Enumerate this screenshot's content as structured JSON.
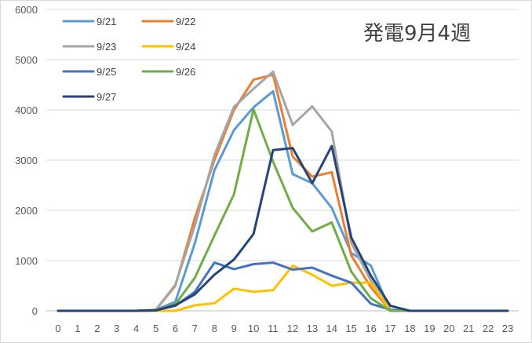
{
  "chart_data": {
    "type": "line",
    "title": "発電9月4週",
    "xlabel": "",
    "ylabel": "",
    "ylim": [
      0,
      6000
    ],
    "yticks": [
      0,
      1000,
      2000,
      3000,
      4000,
      5000,
      6000
    ],
    "x": [
      0,
      1,
      2,
      3,
      4,
      5,
      6,
      7,
      8,
      9,
      10,
      11,
      12,
      13,
      14,
      15,
      16,
      17,
      18,
      19,
      20,
      21,
      22,
      23
    ],
    "grid": "horizontal",
    "legend_position": "top-left",
    "series": [
      {
        "name": "9/21",
        "color": "#5b9bd5",
        "values": [
          0,
          0,
          0,
          0,
          0,
          20,
          180,
          1350,
          2800,
          3600,
          4050,
          4370,
          2720,
          2540,
          2050,
          1150,
          900,
          0,
          0,
          0,
          0,
          0,
          0,
          0
        ]
      },
      {
        "name": "9/22",
        "color": "#ed7d31",
        "values": [
          0,
          0,
          0,
          0,
          0,
          20,
          500,
          1850,
          3000,
          4000,
          4600,
          4700,
          3070,
          2670,
          2760,
          1100,
          470,
          0,
          0,
          0,
          0,
          0,
          0,
          0
        ]
      },
      {
        "name": "9/23",
        "color": "#a5a5a5",
        "values": [
          0,
          0,
          0,
          0,
          0,
          20,
          520,
          1700,
          3100,
          4060,
          4420,
          4760,
          3700,
          4070,
          3570,
          1350,
          600,
          0,
          0,
          0,
          0,
          0,
          0,
          0
        ]
      },
      {
        "name": "9/24",
        "color": "#ffc000",
        "values": [
          0,
          0,
          0,
          0,
          0,
          0,
          0,
          110,
          150,
          440,
          380,
          410,
          900,
          720,
          500,
          560,
          560,
          0,
          0,
          0,
          0,
          0,
          0,
          0
        ]
      },
      {
        "name": "9/25",
        "color": "#4472c4",
        "values": [
          0,
          0,
          0,
          0,
          0,
          10,
          100,
          380,
          960,
          830,
          930,
          960,
          820,
          860,
          700,
          560,
          140,
          20,
          0,
          0,
          0,
          0,
          0,
          0
        ]
      },
      {
        "name": "9/26",
        "color": "#70ad47",
        "values": [
          0,
          0,
          0,
          0,
          0,
          10,
          130,
          660,
          1500,
          2320,
          4010,
          2970,
          2050,
          1580,
          1760,
          780,
          250,
          0,
          0,
          0,
          0,
          0,
          0,
          0
        ]
      },
      {
        "name": "9/27",
        "color": "#264478",
        "values": [
          0,
          0,
          0,
          0,
          0,
          10,
          110,
          330,
          720,
          1020,
          1530,
          3200,
          3240,
          2540,
          3280,
          1460,
          700,
          100,
          0,
          0,
          0,
          0,
          0,
          0
        ]
      }
    ]
  }
}
